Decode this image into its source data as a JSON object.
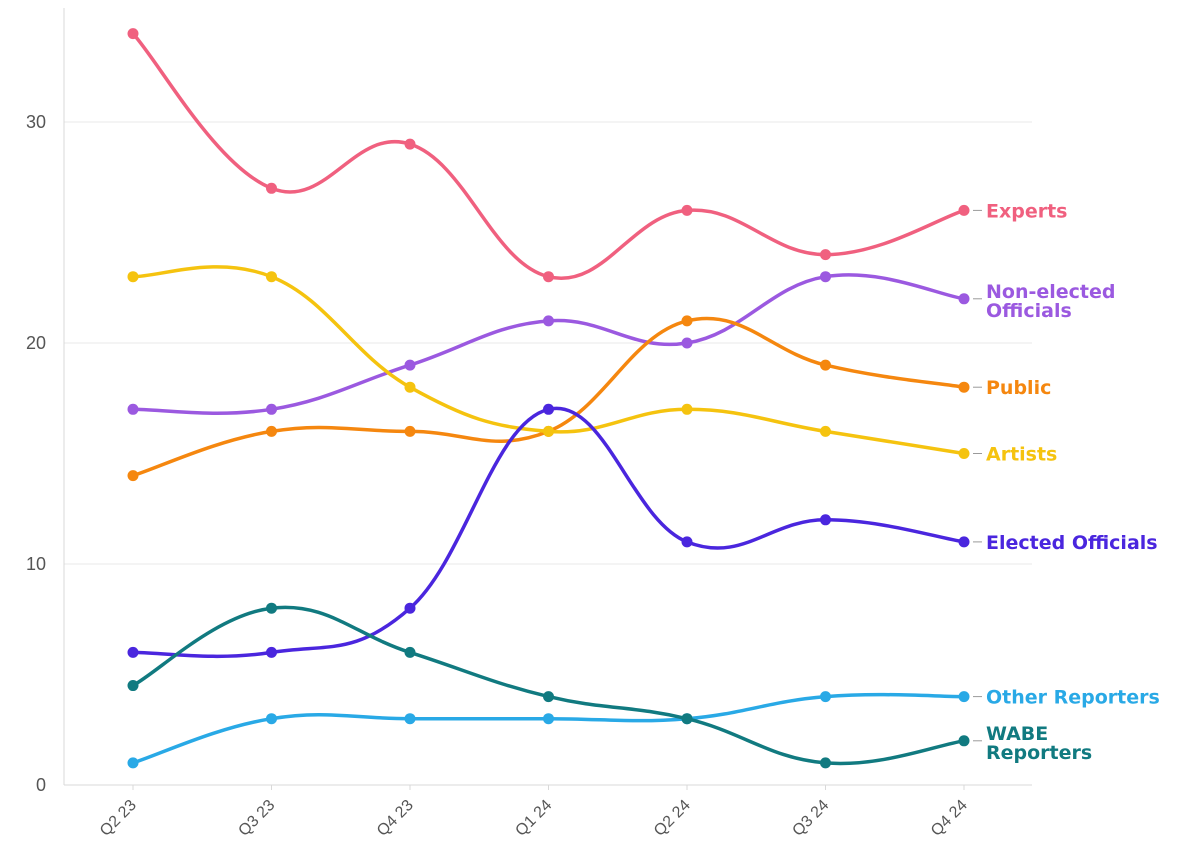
{
  "chart_data": {
    "type": "line",
    "title": "",
    "xlabel": "",
    "ylabel": "",
    "categories": [
      "Q2 23",
      "Q3 23",
      "Q4 23",
      "Q1 24",
      "Q2 24",
      "Q3 24",
      "Q4 24"
    ],
    "ylim": [
      0,
      34
    ],
    "yticks": [
      0,
      10,
      20,
      30
    ],
    "grid": "horizontal",
    "legend": "direct labels at right end of each line",
    "series": [
      {
        "name": "Experts",
        "color": "#f0607f",
        "values": [
          34,
          27,
          29,
          23,
          26,
          24,
          26
        ]
      },
      {
        "name": "Non-elected Officials",
        "color": "#9b59e0",
        "values": [
          17,
          17,
          19,
          21,
          20,
          23,
          22
        ]
      },
      {
        "name": "Public",
        "color": "#f5870f",
        "values": [
          14,
          16,
          16,
          16,
          21,
          19,
          18
        ]
      },
      {
        "name": "Artists",
        "color": "#f5c30f",
        "values": [
          23,
          23,
          18,
          16,
          17,
          16,
          15
        ]
      },
      {
        "name": "Elected Officials",
        "color": "#4a26de",
        "values": [
          6,
          6,
          8,
          17,
          11,
          12,
          11
        ]
      },
      {
        "name": "Other Reporters",
        "color": "#29a9e6",
        "values": [
          1,
          3,
          3,
          3,
          3,
          4,
          4
        ]
      },
      {
        "name": "WABE Reporters",
        "color": "#117a80",
        "values": [
          4.5,
          8,
          6,
          4,
          3,
          1,
          2
        ]
      }
    ]
  }
}
